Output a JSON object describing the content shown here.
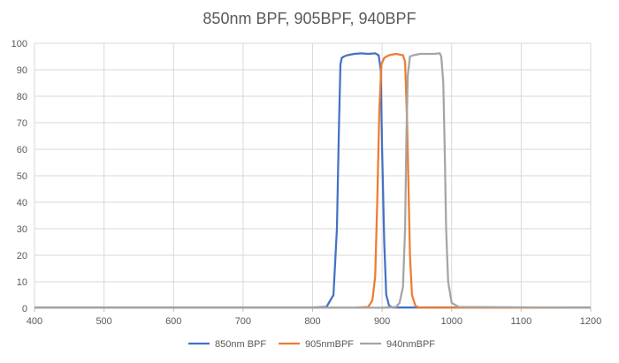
{
  "chart_data": {
    "type": "line",
    "title": "850nm BPF, 905BPF, 940BPF",
    "xlabel": "",
    "ylabel": "",
    "xlim": [
      400,
      1200
    ],
    "ylim": [
      0,
      100
    ],
    "x_ticks": [
      400,
      500,
      600,
      700,
      800,
      900,
      1000,
      1100,
      1200
    ],
    "y_ticks": [
      0,
      10,
      20,
      30,
      40,
      50,
      60,
      70,
      80,
      90,
      100
    ],
    "grid": true,
    "legend_position": "bottom",
    "series": [
      {
        "name": "850nm BPF",
        "color": "#4472C4",
        "x": [
          400,
          800,
          820,
          830,
          835,
          838,
          840,
          842,
          845,
          850,
          860,
          870,
          880,
          890,
          895,
          898,
          900,
          903,
          906,
          910,
          915,
          1200
        ],
        "y": [
          0.3,
          0.3,
          0.5,
          5,
          30,
          70,
          92,
          94.5,
          95,
          95.5,
          96,
          96.2,
          96,
          96.2,
          95.5,
          90,
          60,
          25,
          5,
          1,
          0.3,
          0.3
        ]
      },
      {
        "name": "905nmBPF",
        "color": "#ED7D31",
        "x": [
          400,
          860,
          880,
          886,
          890,
          893,
          896,
          899,
          903,
          910,
          920,
          930,
          933,
          936,
          938,
          940,
          943,
          948,
          955,
          1200
        ],
        "y": [
          0.2,
          0.2,
          0.5,
          3,
          12,
          40,
          75,
          92,
          94.5,
          95.5,
          96,
          95.5,
          93,
          70,
          45,
          20,
          5,
          0.8,
          0.2,
          0.2
        ]
      },
      {
        "name": "940nmBPF",
        "color": "#A5A5A5",
        "x": [
          400,
          900,
          920,
          925,
          930,
          933,
          935,
          937,
          940,
          945,
          955,
          965,
          975,
          983,
          985,
          988,
          990,
          992,
          995,
          1000,
          1010,
          1200
        ],
        "y": [
          0.2,
          0.2,
          0.5,
          2,
          8,
          30,
          65,
          88,
          95,
          95.5,
          96,
          96,
          96,
          96.2,
          95,
          85,
          60,
          30,
          10,
          2,
          0.5,
          0.2
        ]
      }
    ]
  }
}
